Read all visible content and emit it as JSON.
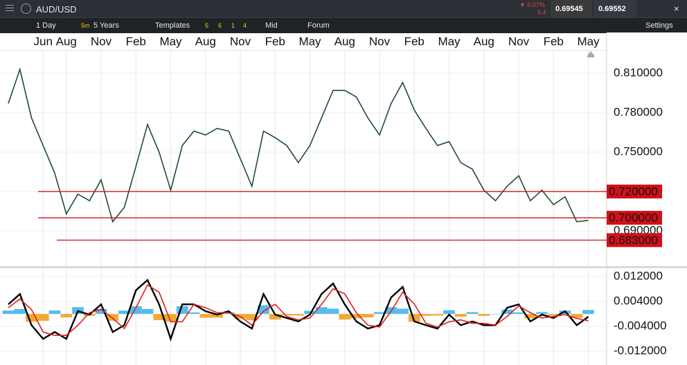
{
  "toolbar": {
    "symbol": "AUD/USD",
    "change": "▼ 0.07%",
    "spread": "5.4",
    "sell": "0.69545",
    "buy": "0.69552",
    "interval": "1 Day",
    "quick": "5m",
    "range": "5 Years",
    "templates": "Templates",
    "presets": [
      "5",
      "6",
      "1",
      "4"
    ],
    "mode": "Mid",
    "forum": "Forum",
    "settings": "Settings"
  },
  "chart_data": [
    {
      "type": "line",
      "color": "#1e4d2b",
      "categories": [
        null,
        null,
        null,
        "Jun",
        null,
        "Aug",
        null,
        null,
        "Nov",
        null,
        null,
        "Feb",
        null,
        null,
        "May",
        null,
        null,
        "Aug",
        null,
        null,
        "Nov",
        null,
        null,
        "Feb",
        null,
        null,
        "May",
        null,
        null,
        "Aug",
        null,
        null,
        "Nov",
        null,
        null,
        "Feb",
        null,
        null,
        "May",
        null,
        null,
        "Aug",
        null,
        null,
        "Nov",
        null,
        null,
        "Feb",
        null,
        null,
        "May"
      ],
      "values": [
        0.787,
        0.813,
        0.776,
        0.755,
        0.734,
        0.703,
        0.718,
        0.713,
        0.729,
        0.697,
        0.708,
        0.739,
        0.771,
        0.75,
        0.721,
        0.755,
        0.766,
        0.763,
        0.768,
        0.766,
        0.745,
        0.724,
        0.766,
        0.761,
        0.755,
        0.742,
        0.755,
        0.776,
        0.797,
        0.797,
        0.792,
        0.776,
        0.763,
        0.787,
        0.803,
        0.782,
        0.768,
        0.755,
        0.758,
        0.742,
        0.737,
        0.721,
        0.713,
        0.724,
        0.732,
        0.713,
        0.721,
        0.71,
        0.716,
        0.697,
        0.698
      ],
      "ylim": [
        0.6632,
        0.8405
      ],
      "yticks": [
        {
          "value": 0.69,
          "label": "0.690000"
        },
        {
          "value": 0.72,
          "label": "0.720000"
        },
        {
          "value": 0.75,
          "label": "0.750000"
        },
        {
          "value": 0.78,
          "label": "0.780000"
        },
        {
          "value": 0.81,
          "label": "0.810000"
        }
      ],
      "grid": true,
      "levels": [
        {
          "value": 0.72,
          "label": "0.720000",
          "color": "#d0101a"
        },
        {
          "value": 0.7,
          "label": "0.700000",
          "color": "#d0101a"
        },
        {
          "value": 0.683,
          "label": "0.683000",
          "color": "#d0101a"
        }
      ]
    },
    {
      "type": "combo",
      "series": [
        {
          "color": "#000000",
          "values": [
            0.0031,
            0.0064,
            -0.0036,
            -0.008,
            -0.0058,
            -0.008,
            0.0009,
            -0.0002,
            0.0031,
            -0.0058,
            -0.0036,
            0.0076,
            0.0109,
            0.0031,
            -0.008,
            0.0031,
            0.0031,
            0.0009,
            -0.0002,
            0.0009,
            -0.0024,
            -0.0047,
            0.0064,
            -0.0002,
            -0.0013,
            -0.0024,
            -0.0002,
            0.0064,
            0.0098,
            0.0031,
            -0.0024,
            -0.0047,
            -0.0036,
            0.0053,
            0.0087,
            -0.0024,
            -0.0036,
            -0.0047,
            -0.0002,
            -0.0036,
            -0.0024,
            -0.0036,
            -0.0036,
            0.002,
            0.0031,
            -0.0024,
            -0.0002,
            -0.0013,
            0.0009,
            -0.0036,
            -0.0009
          ]
        },
        {
          "color": "#e0201b",
          "values": [
            0.002,
            0.0048,
            0.0014,
            -0.0058,
            -0.0069,
            -0.0069,
            -0.0036,
            0.0004,
            0.0015,
            -0.0014,
            -0.0047,
            0.002,
            0.0093,
            0.007,
            -0.0025,
            -0.0025,
            0.0031,
            0.002,
            0.0004,
            0.0004,
            -0.0008,
            -0.0036,
            0.0009,
            0.0031,
            -0.0008,
            -0.0019,
            -0.0013,
            0.0031,
            0.0081,
            0.0065,
            0.0004,
            -0.0036,
            -0.0042,
            0.0009,
            0.007,
            0.0032,
            -0.003,
            -0.0042,
            -0.0025,
            -0.0019,
            -0.003,
            -0.003,
            -0.0036,
            -0.0008,
            0.0026,
            0.0004,
            -0.0013,
            -0.0008,
            -0.0002,
            -0.0014,
            -0.0022
          ]
        },
        {
          "kind": "histogram",
          "color_positive": "#45b4ea",
          "color_negative": "#f0a020",
          "values": [
            0.0011,
            0.0016,
            -0.0025,
            -0.0022,
            0.0011,
            -0.0011,
            0.0022,
            -0.0006,
            0.0016,
            -0.0022,
            0.0011,
            0.0025,
            0.0016,
            -0.002,
            -0.0025,
            0.0025,
            0.0005,
            -0.0012,
            -0.0012,
            0.0005,
            -0.0015,
            -0.002,
            0.0028,
            -0.0018,
            -0.0005,
            -0.0005,
            0.001,
            0.0022,
            0.0017,
            -0.0018,
            -0.0014,
            -0.0011,
            0.0006,
            0.0022,
            0.0017,
            -0.0025,
            -0.0006,
            -0.0005,
            0.0012,
            -0.0009,
            0.0006,
            -0.0006,
            0,
            0.0014,
            0.0005,
            -0.0014,
            0.0006,
            -0.0005,
            0.0011,
            -0.0012,
            0.0013
          ]
        }
      ],
      "ylim": [
        -0.0164,
        0.0147
      ],
      "yticks": [
        {
          "value": -0.012,
          "label": "-0.012000"
        },
        {
          "value": -0.004,
          "label": "-0.004000"
        },
        {
          "value": 0.004,
          "label": "0.004000"
        },
        {
          "value": 0.012,
          "label": "0.012000"
        }
      ]
    }
  ]
}
